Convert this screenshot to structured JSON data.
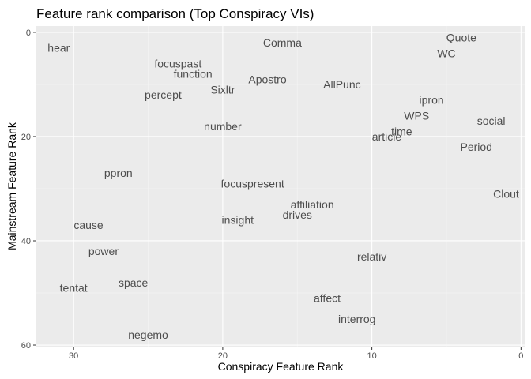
{
  "chart_data": {
    "type": "scatter",
    "title": "Feature rank comparison (Top Conspiracy VIs)",
    "xlabel": "Conspiracy Feature Rank",
    "ylabel": "Mainstream Feature Rank",
    "x_reversed": true,
    "y_reversed": true,
    "xlim": [
      32.5,
      -0.3
    ],
    "ylim": [
      -1.2,
      60.3
    ],
    "x_ticks": [
      30,
      20,
      10,
      0
    ],
    "y_ticks": [
      0,
      20,
      40,
      60
    ],
    "grid": true,
    "points": [
      {
        "label": "hear",
        "x": 31,
        "y": 3
      },
      {
        "label": "Comma",
        "x": 16,
        "y": 2
      },
      {
        "label": "Quote",
        "x": 4,
        "y": 1
      },
      {
        "label": "WC",
        "x": 5,
        "y": 4
      },
      {
        "label": "focuspast",
        "x": 23,
        "y": 6
      },
      {
        "label": "function",
        "x": 22,
        "y": 8
      },
      {
        "label": "Apostro",
        "x": 17,
        "y": 9
      },
      {
        "label": "AllPunc",
        "x": 12,
        "y": 10
      },
      {
        "label": "percept",
        "x": 24,
        "y": 12
      },
      {
        "label": "Sixltr",
        "x": 20,
        "y": 11
      },
      {
        "label": "ipron",
        "x": 6,
        "y": 13
      },
      {
        "label": "WPS",
        "x": 7,
        "y": 16
      },
      {
        "label": "social",
        "x": 2,
        "y": 17
      },
      {
        "label": "number",
        "x": 20,
        "y": 18
      },
      {
        "label": "time",
        "x": 8,
        "y": 19
      },
      {
        "label": "article",
        "x": 9,
        "y": 20
      },
      {
        "label": "Period",
        "x": 3,
        "y": 22
      },
      {
        "label": "ppron",
        "x": 27,
        "y": 27
      },
      {
        "label": "focuspresent",
        "x": 18,
        "y": 29
      },
      {
        "label": "Clout",
        "x": 1,
        "y": 31
      },
      {
        "label": "affiliation",
        "x": 14,
        "y": 33
      },
      {
        "label": "drives",
        "x": 15,
        "y": 35
      },
      {
        "label": "insight",
        "x": 19,
        "y": 36
      },
      {
        "label": "cause",
        "x": 29,
        "y": 37
      },
      {
        "label": "power",
        "x": 28,
        "y": 42
      },
      {
        "label": "relativ",
        "x": 10,
        "y": 43
      },
      {
        "label": "space",
        "x": 26,
        "y": 48
      },
      {
        "label": "tentat",
        "x": 30,
        "y": 49
      },
      {
        "label": "affect",
        "x": 13,
        "y": 51
      },
      {
        "label": "interrog",
        "x": 11,
        "y": 55
      },
      {
        "label": "negemo",
        "x": 25,
        "y": 58
      }
    ]
  }
}
